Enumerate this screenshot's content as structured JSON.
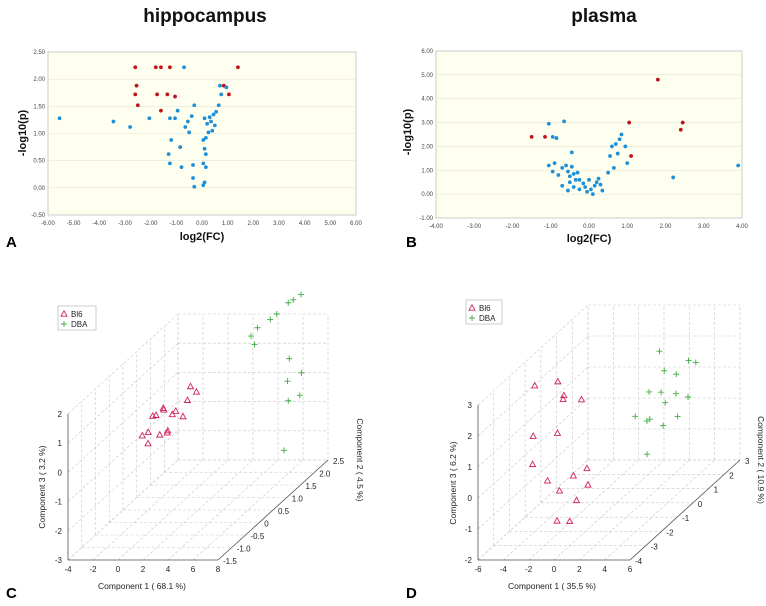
{
  "chart_data": [
    {
      "type": "scatter",
      "panel_label": "A",
      "title": "hippocampus",
      "xlabel": "log2(FC)",
      "ylabel": "-log10(p)",
      "xlim": [
        -6,
        6
      ],
      "ylim": [
        -0.5,
        2.5
      ],
      "xticks": [
        "-6.00",
        "-5.00",
        "-4.00",
        "-3.00",
        "-2.00",
        "-1.00",
        "0.00",
        "1.00",
        "2.00",
        "3.00",
        "4.00",
        "5.00",
        "6.00"
      ],
      "yticks": [
        "-0.50",
        "0.00",
        "0.50",
        "1.00",
        "1.50",
        "2.00",
        "2.50"
      ],
      "colors": {
        "nonsig": "#1f8fd6",
        "sig": "#c0141c"
      },
      "series": [
        {
          "name": "significant",
          "color": "#c0141c",
          "points": [
            [
              -2.6,
              2.22
            ],
            [
              -2.55,
              1.88
            ],
            [
              -2.6,
              1.72
            ],
            [
              -2.5,
              1.52
            ],
            [
              -1.8,
              2.22
            ],
            [
              -1.6,
              2.22
            ],
            [
              -1.25,
              2.22
            ],
            [
              -1.75,
              1.72
            ],
            [
              -1.35,
              1.72
            ],
            [
              -1.05,
              1.68
            ],
            [
              -1.6,
              1.42
            ],
            [
              0.85,
              1.88
            ],
            [
              1.05,
              1.72
            ],
            [
              1.4,
              2.22
            ]
          ]
        },
        {
          "name": "not significant",
          "color": "#1f8fd6",
          "points": [
            [
              -5.55,
              1.28
            ],
            [
              -3.45,
              1.22
            ],
            [
              -2.8,
              1.12
            ],
            [
              -2.05,
              1.28
            ],
            [
              -0.7,
              2.22
            ],
            [
              -0.95,
              1.42
            ],
            [
              -1.25,
              1.28
            ],
            [
              -1.05,
              1.28
            ],
            [
              -0.55,
              1.22
            ],
            [
              -0.3,
              1.52
            ],
            [
              -0.4,
              1.32
            ],
            [
              -0.65,
              1.12
            ],
            [
              -0.5,
              1.02
            ],
            [
              -1.2,
              0.88
            ],
            [
              -0.85,
              0.75
            ],
            [
              -1.3,
              0.62
            ],
            [
              -1.25,
              0.45
            ],
            [
              -0.8,
              0.38
            ],
            [
              -0.35,
              0.42
            ],
            [
              -0.35,
              0.18
            ],
            [
              -0.3,
              0.02
            ],
            [
              0.05,
              0.05
            ],
            [
              0.1,
              0.1
            ],
            [
              0.05,
              0.45
            ],
            [
              0.15,
              0.38
            ],
            [
              0.15,
              0.62
            ],
            [
              0.1,
              0.72
            ],
            [
              0.05,
              0.88
            ],
            [
              0.15,
              0.92
            ],
            [
              0.25,
              1.02
            ],
            [
              0.2,
              1.18
            ],
            [
              0.35,
              1.22
            ],
            [
              0.5,
              1.15
            ],
            [
              0.3,
              1.3
            ],
            [
              0.45,
              1.35
            ],
            [
              0.55,
              1.4
            ],
            [
              0.65,
              1.52
            ],
            [
              0.75,
              1.72
            ],
            [
              0.7,
              1.88
            ],
            [
              0.95,
              1.85
            ],
            [
              0.1,
              1.28
            ],
            [
              0.4,
              1.05
            ]
          ]
        }
      ]
    },
    {
      "type": "scatter",
      "panel_label": "B",
      "title": "plasma",
      "xlabel": "log2(FC)",
      "ylabel": "-log10(p)",
      "xlim": [
        -4,
        4
      ],
      "ylim": [
        -1,
        6
      ],
      "xticks": [
        "-4.00",
        "-3.00",
        "-2.00",
        "-1.00",
        "0.00",
        "1.00",
        "2.00",
        "3.00",
        "4.00"
      ],
      "yticks": [
        "-1.00",
        "0.00",
        "1.00",
        "2.00",
        "3.00",
        "4.00",
        "5.00",
        "6.00"
      ],
      "colors": {
        "nonsig": "#1f8fd6",
        "sig": "#c0141c"
      },
      "series": [
        {
          "name": "significant",
          "color": "#c0141c",
          "points": [
            [
              -1.5,
              2.4
            ],
            [
              -1.15,
              2.4
            ],
            [
              1.05,
              3.0
            ],
            [
              1.1,
              1.6
            ],
            [
              1.8,
              4.8
            ],
            [
              2.45,
              3.0
            ],
            [
              2.4,
              2.7
            ]
          ]
        },
        {
          "name": "not significant",
          "color": "#1f8fd6",
          "points": [
            [
              -1.05,
              2.95
            ],
            [
              -0.65,
              3.05
            ],
            [
              -0.95,
              2.4
            ],
            [
              -0.85,
              2.35
            ],
            [
              -1.05,
              1.2
            ],
            [
              -0.9,
              1.3
            ],
            [
              -0.95,
              0.95
            ],
            [
              -0.8,
              0.8
            ],
            [
              -0.7,
              1.1
            ],
            [
              -0.6,
              1.2
            ],
            [
              -0.55,
              0.95
            ],
            [
              -0.45,
              1.15
            ],
            [
              -0.5,
              0.75
            ],
            [
              -0.4,
              0.85
            ],
            [
              -0.3,
              0.9
            ],
            [
              -0.35,
              0.6
            ],
            [
              -0.5,
              0.5
            ],
            [
              -0.25,
              0.6
            ],
            [
              -0.15,
              0.45
            ],
            [
              -0.7,
              0.35
            ],
            [
              -0.55,
              0.15
            ],
            [
              -0.4,
              0.3
            ],
            [
              -0.25,
              0.2
            ],
            [
              -0.1,
              0.3
            ],
            [
              -0.05,
              0.1
            ],
            [
              0.05,
              0.2
            ],
            [
              0.1,
              0.0
            ],
            [
              0.15,
              0.35
            ],
            [
              0.2,
              0.5
            ],
            [
              0.25,
              0.65
            ],
            [
              0.3,
              0.4
            ],
            [
              0.35,
              0.15
            ],
            [
              0.0,
              0.6
            ],
            [
              0.5,
              0.9
            ],
            [
              0.55,
              1.6
            ],
            [
              0.6,
              2.0
            ],
            [
              0.7,
              2.1
            ],
            [
              0.75,
              1.7
            ],
            [
              0.8,
              2.3
            ],
            [
              0.85,
              2.5
            ],
            [
              0.95,
              2.0
            ],
            [
              0.65,
              1.1
            ],
            [
              1.0,
              1.3
            ],
            [
              2.2,
              0.7
            ],
            [
              3.9,
              1.2
            ],
            [
              -0.45,
              1.75
            ]
          ]
        }
      ]
    },
    {
      "type": "scatter3d",
      "panel_label": "C",
      "xlabel": "Component 1 ( 68.1 %)",
      "ylabel": "Component 2 ( 4.5 %)",
      "zlabel": "Component 3 ( 3.2 %)",
      "xticks": [
        "-4",
        "-2",
        "0",
        "2",
        "4",
        "6",
        "8"
      ],
      "yticks": [
        "-1.5",
        "-1.0",
        "-0.5",
        "0",
        "0.5",
        "1.0",
        "1.5",
        "2.0",
        "2.5"
      ],
      "zticks": [
        "-3",
        "-2",
        "-1",
        "0",
        "1",
        "2"
      ],
      "legend": [
        "Bl6",
        "DBA"
      ],
      "series": [
        {
          "name": "Bl6",
          "marker": "triangle",
          "color": "#d0245a",
          "points": [
            [
              -1.8,
              0.2,
              -0.2
            ],
            [
              -1.4,
              0.4,
              0.3
            ],
            [
              -1.1,
              0.1,
              0.0
            ],
            [
              -1.0,
              0.6,
              0.4
            ],
            [
              -0.7,
              0.2,
              0.5
            ],
            [
              -0.5,
              0.7,
              0.1
            ],
            [
              -0.3,
              0.3,
              0.6
            ],
            [
              0.0,
              0.6,
              0.3
            ],
            [
              0.2,
              0.2,
              -0.1
            ],
            [
              0.5,
              0.8,
              0.5
            ],
            [
              0.8,
              0.5,
              0.2
            ],
            [
              -1.5,
              0.7,
              -0.6
            ],
            [
              -0.9,
              0.0,
              -0.3
            ],
            [
              0.3,
              1.0,
              0.8
            ],
            [
              1.0,
              0.9,
              0.7
            ],
            [
              -0.2,
              0.4,
              -0.2
            ]
          ]
        },
        {
          "name": "DBA",
          "marker": "plus",
          "color": "#3fae3f",
          "points": [
            [
              2.5,
              2.2,
              1.5
            ],
            [
              2.8,
              2.3,
              1.7
            ],
            [
              3.0,
              2.1,
              1.3
            ],
            [
              3.6,
              2.4,
              1.9
            ],
            [
              3.9,
              2.5,
              2.0
            ],
            [
              4.6,
              2.6,
              2.3
            ],
            [
              5.0,
              2.6,
              2.4
            ],
            [
              5.4,
              2.7,
              2.5
            ],
            [
              6.0,
              2.0,
              0.9
            ],
            [
              6.3,
              1.8,
              0.3
            ],
            [
              6.8,
              1.6,
              -0.2
            ],
            [
              7.2,
              1.9,
              0.5
            ],
            [
              7.5,
              1.7,
              -0.1
            ],
            [
              8.0,
              0.9,
              -1.3
            ]
          ]
        }
      ]
    },
    {
      "type": "scatter3d",
      "panel_label": "D",
      "xlabel": "Component 1 ( 35.5 %)",
      "ylabel": "Component 2 ( 10.9 %)",
      "zlabel": "Component 3 ( 6.2 %)",
      "xticks": [
        "-6",
        "-4",
        "-2",
        "0",
        "2",
        "4",
        "6"
      ],
      "yticks": [
        "-4",
        "-3",
        "-2",
        "-1",
        "0",
        "1",
        "2",
        "3"
      ],
      "zticks": [
        "-2",
        "-1",
        "0",
        "1",
        "2",
        "3"
      ],
      "legend": [
        "Bl6",
        "DBA"
      ],
      "series": [
        {
          "name": "Bl6",
          "marker": "triangle",
          "color": "#d0245a",
          "points": [
            [
              -4.0,
              -2.0,
              2.7
            ],
            [
              -2.8,
              -1.5,
              2.6
            ],
            [
              -2.2,
              -1.6,
              2.2
            ],
            [
              -3.0,
              -1.0,
              1.8
            ],
            [
              -1.8,
              -0.8,
              1.7
            ],
            [
              -3.5,
              -2.5,
              1.3
            ],
            [
              -3.2,
              -1.2,
              0.8
            ],
            [
              -3.8,
              -2.3,
              0.3
            ],
            [
              -2.0,
              -2.8,
              0.0
            ],
            [
              -1.2,
              -1.8,
              -0.3
            ],
            [
              -0.5,
              -1.5,
              -0.2
            ],
            [
              -1.8,
              -2.2,
              -0.6
            ],
            [
              0.2,
              -2.0,
              -0.5
            ],
            [
              -0.7,
              -2.0,
              -1.0
            ],
            [
              -1.0,
              -3.0,
              -1.2
            ],
            [
              -0.5,
              -2.6,
              -1.4
            ]
          ]
        },
        {
          "name": "DBA",
          "marker": "plus",
          "color": "#3fae3f",
          "points": [
            [
              1.5,
              1.5,
              2.2
            ],
            [
              2.5,
              1.0,
              1.8
            ],
            [
              3.2,
              1.2,
              1.6
            ],
            [
              3.8,
              1.5,
              1.9
            ],
            [
              4.0,
              1.8,
              1.7
            ],
            [
              1.8,
              0.6,
              1.3
            ],
            [
              2.5,
              0.8,
              1.2
            ],
            [
              3.2,
              0.5,
              1.0
            ],
            [
              3.8,
              0.7,
              1.2
            ],
            [
              4.5,
              0.9,
              1.0
            ],
            [
              1.2,
              0.2,
              0.7
            ],
            [
              2.0,
              0.3,
              0.5
            ],
            [
              2.6,
              0.0,
              0.7
            ],
            [
              3.4,
              0.2,
              0.4
            ],
            [
              4.3,
              0.4,
              0.6
            ],
            [
              3.0,
              -0.5,
              -0.2
            ]
          ]
        }
      ]
    }
  ]
}
